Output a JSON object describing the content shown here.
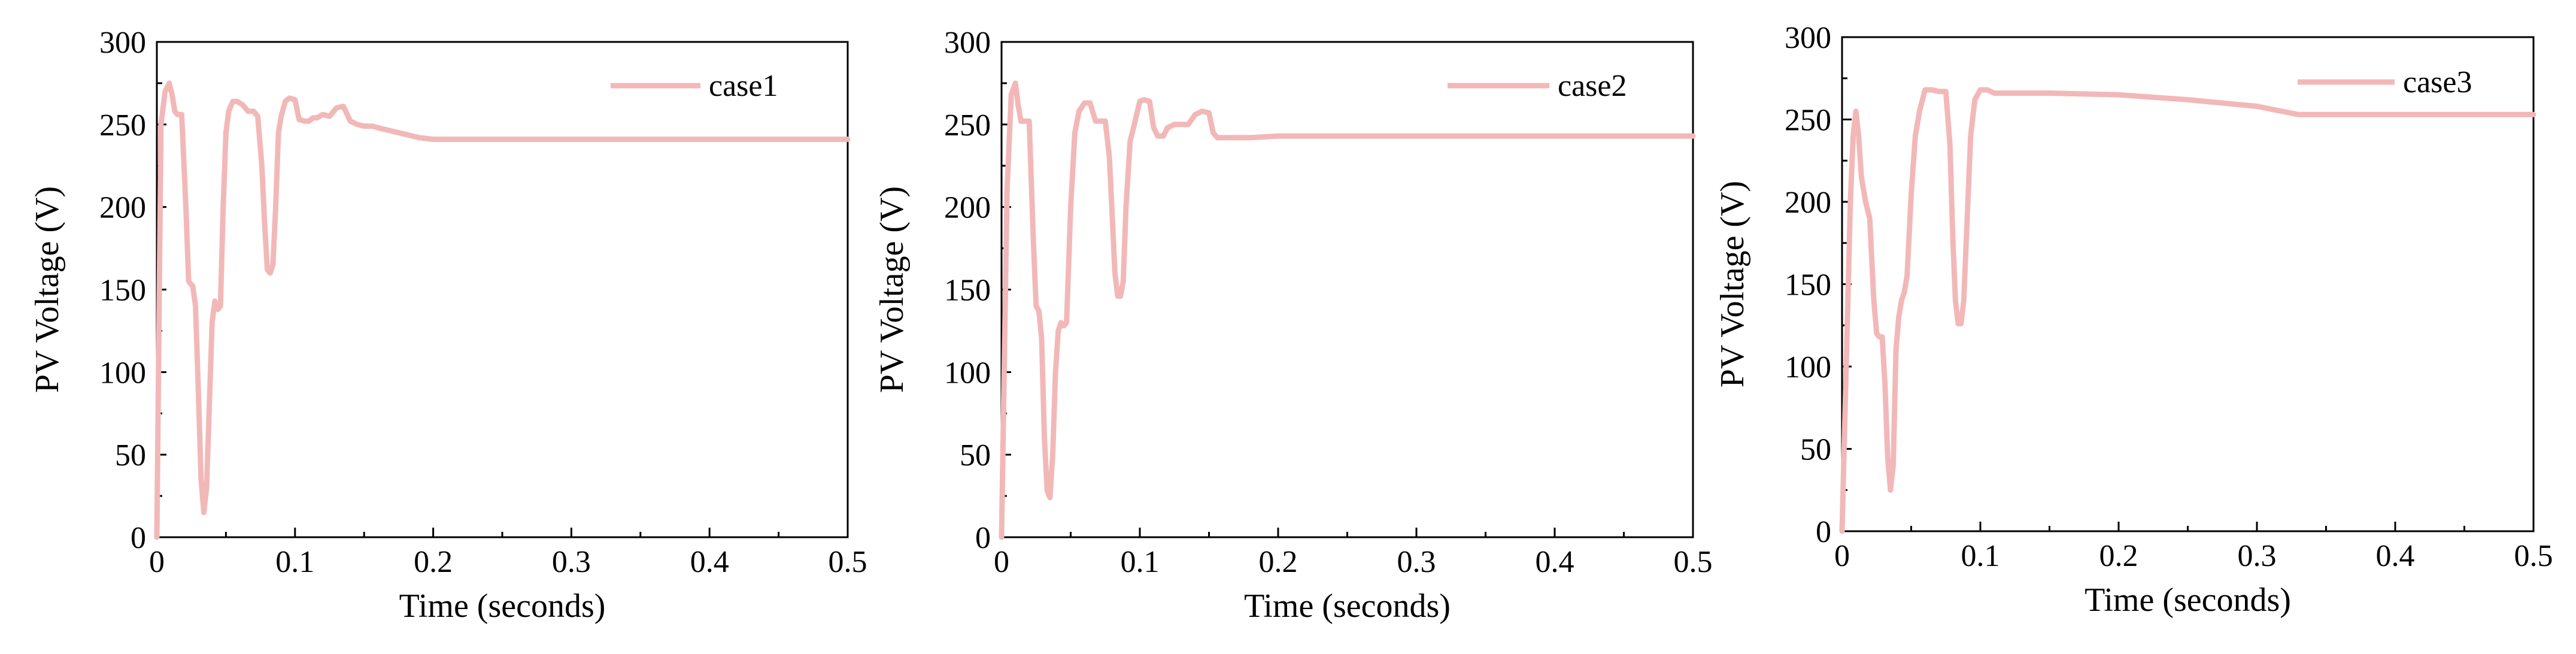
{
  "figure": {
    "line_color": "#f2b8b8"
  },
  "chart_data": [
    {
      "type": "line",
      "xlabel": "Time (seconds)",
      "ylabel": "PV Voltage (V)",
      "xlim": [
        0,
        0.5
      ],
      "ylim": [
        0,
        300
      ],
      "xticks": [
        "0",
        "0.1",
        "0.2",
        "0.3",
        "0.4",
        "0.5"
      ],
      "yticks": [
        "0",
        "50",
        "100",
        "150",
        "200",
        "250",
        "300"
      ],
      "legend": "top-right",
      "series": [
        {
          "name": "case1",
          "x": [
            0,
            0.003,
            0.006,
            0.009,
            0.011,
            0.013,
            0.015,
            0.018,
            0.021,
            0.023,
            0.026,
            0.028,
            0.03,
            0.032,
            0.034,
            0.036,
            0.038,
            0.04,
            0.042,
            0.044,
            0.046,
            0.048,
            0.05,
            0.052,
            0.055,
            0.058,
            0.062,
            0.066,
            0.07,
            0.073,
            0.076,
            0.078,
            0.08,
            0.082,
            0.084,
            0.086,
            0.088,
            0.09,
            0.093,
            0.096,
            0.1,
            0.103,
            0.107,
            0.11,
            0.113,
            0.116,
            0.12,
            0.125,
            0.13,
            0.135,
            0.14,
            0.145,
            0.15,
            0.153,
            0.156,
            0.16,
            0.17,
            0.18,
            0.19,
            0.2,
            0.21,
            0.22,
            0.25,
            0.3,
            0.35,
            0.4,
            0.45,
            0.5
          ],
          "y": [
            0,
            250,
            270,
            275,
            268,
            258,
            256,
            256,
            200,
            155,
            152,
            140,
            90,
            35,
            15,
            30,
            80,
            130,
            143,
            138,
            140,
            200,
            245,
            258,
            264,
            264,
            262,
            258,
            258,
            255,
            225,
            190,
            162,
            160,
            165,
            200,
            245,
            255,
            264,
            266,
            265,
            253,
            252,
            252,
            254,
            254,
            256,
            255,
            260,
            261,
            252,
            250,
            249,
            249,
            249,
            248,
            246,
            244,
            242,
            241,
            241,
            241,
            241,
            241,
            241,
            241,
            241,
            241
          ]
        }
      ]
    },
    {
      "type": "line",
      "xlabel": "Time (seconds)",
      "ylabel": "PV Voltage (V)",
      "xlim": [
        0,
        0.5
      ],
      "ylim": [
        0,
        300
      ],
      "xticks": [
        "0",
        "0.1",
        "0.2",
        "0.3",
        "0.4",
        "0.5"
      ],
      "yticks": [
        "0",
        "50",
        "100",
        "150",
        "200",
        "250",
        "300"
      ],
      "legend": "top-right",
      "series": [
        {
          "name": "case2",
          "x": [
            0,
            0.004,
            0.007,
            0.01,
            0.012,
            0.014,
            0.017,
            0.02,
            0.023,
            0.025,
            0.027,
            0.029,
            0.031,
            0.033,
            0.035,
            0.037,
            0.039,
            0.041,
            0.043,
            0.045,
            0.047,
            0.05,
            0.053,
            0.056,
            0.06,
            0.064,
            0.068,
            0.072,
            0.075,
            0.078,
            0.08,
            0.082,
            0.084,
            0.086,
            0.088,
            0.09,
            0.093,
            0.096,
            0.1,
            0.103,
            0.107,
            0.11,
            0.113,
            0.117,
            0.12,
            0.125,
            0.13,
            0.135,
            0.14,
            0.145,
            0.15,
            0.153,
            0.156,
            0.16,
            0.17,
            0.18,
            0.2,
            0.25,
            0.3,
            0.35,
            0.4,
            0.45,
            0.5
          ],
          "y": [
            0,
            210,
            268,
            275,
            262,
            252,
            252,
            252,
            180,
            140,
            137,
            120,
            60,
            28,
            24,
            50,
            100,
            125,
            130,
            128,
            130,
            200,
            245,
            258,
            263,
            263,
            252,
            252,
            252,
            230,
            195,
            160,
            146,
            146,
            155,
            200,
            240,
            250,
            264,
            265,
            264,
            248,
            243,
            243,
            248,
            250,
            250,
            250,
            256,
            258,
            257,
            245,
            242,
            242,
            242,
            242,
            243,
            243,
            243,
            243,
            243,
            243,
            243
          ]
        }
      ]
    },
    {
      "type": "line",
      "xlabel": "Time (seconds)",
      "ylabel": "PV Voltage (V)",
      "xlim": [
        0,
        0.5
      ],
      "ylim": [
        0,
        300
      ],
      "xticks": [
        "0",
        "0.1",
        "0.2",
        "0.3",
        "0.4",
        "0.5"
      ],
      "yticks": [
        "0",
        "50",
        "100",
        "150",
        "200",
        "250",
        "300"
      ],
      "legend": "top-right",
      "series": [
        {
          "name": "case3",
          "x": [
            0,
            0.003,
            0.006,
            0.008,
            0.01,
            0.012,
            0.014,
            0.017,
            0.02,
            0.023,
            0.025,
            0.027,
            0.029,
            0.031,
            0.033,
            0.035,
            0.037,
            0.039,
            0.041,
            0.043,
            0.045,
            0.047,
            0.05,
            0.053,
            0.056,
            0.06,
            0.065,
            0.07,
            0.075,
            0.078,
            0.08,
            0.082,
            0.084,
            0.086,
            0.088,
            0.09,
            0.093,
            0.096,
            0.1,
            0.105,
            0.11,
            0.12,
            0.15,
            0.2,
            0.25,
            0.3,
            0.33,
            0.35,
            0.4,
            0.45,
            0.5
          ],
          "y": [
            0,
            100,
            200,
            240,
            255,
            240,
            215,
            200,
            190,
            140,
            120,
            118,
            118,
            90,
            45,
            25,
            40,
            110,
            130,
            140,
            145,
            155,
            205,
            240,
            255,
            268,
            268,
            267,
            267,
            235,
            180,
            140,
            126,
            126,
            140,
            180,
            240,
            262,
            268,
            268,
            266,
            266,
            266,
            265,
            262,
            258,
            253,
            253,
            253,
            253,
            253
          ]
        }
      ]
    }
  ]
}
